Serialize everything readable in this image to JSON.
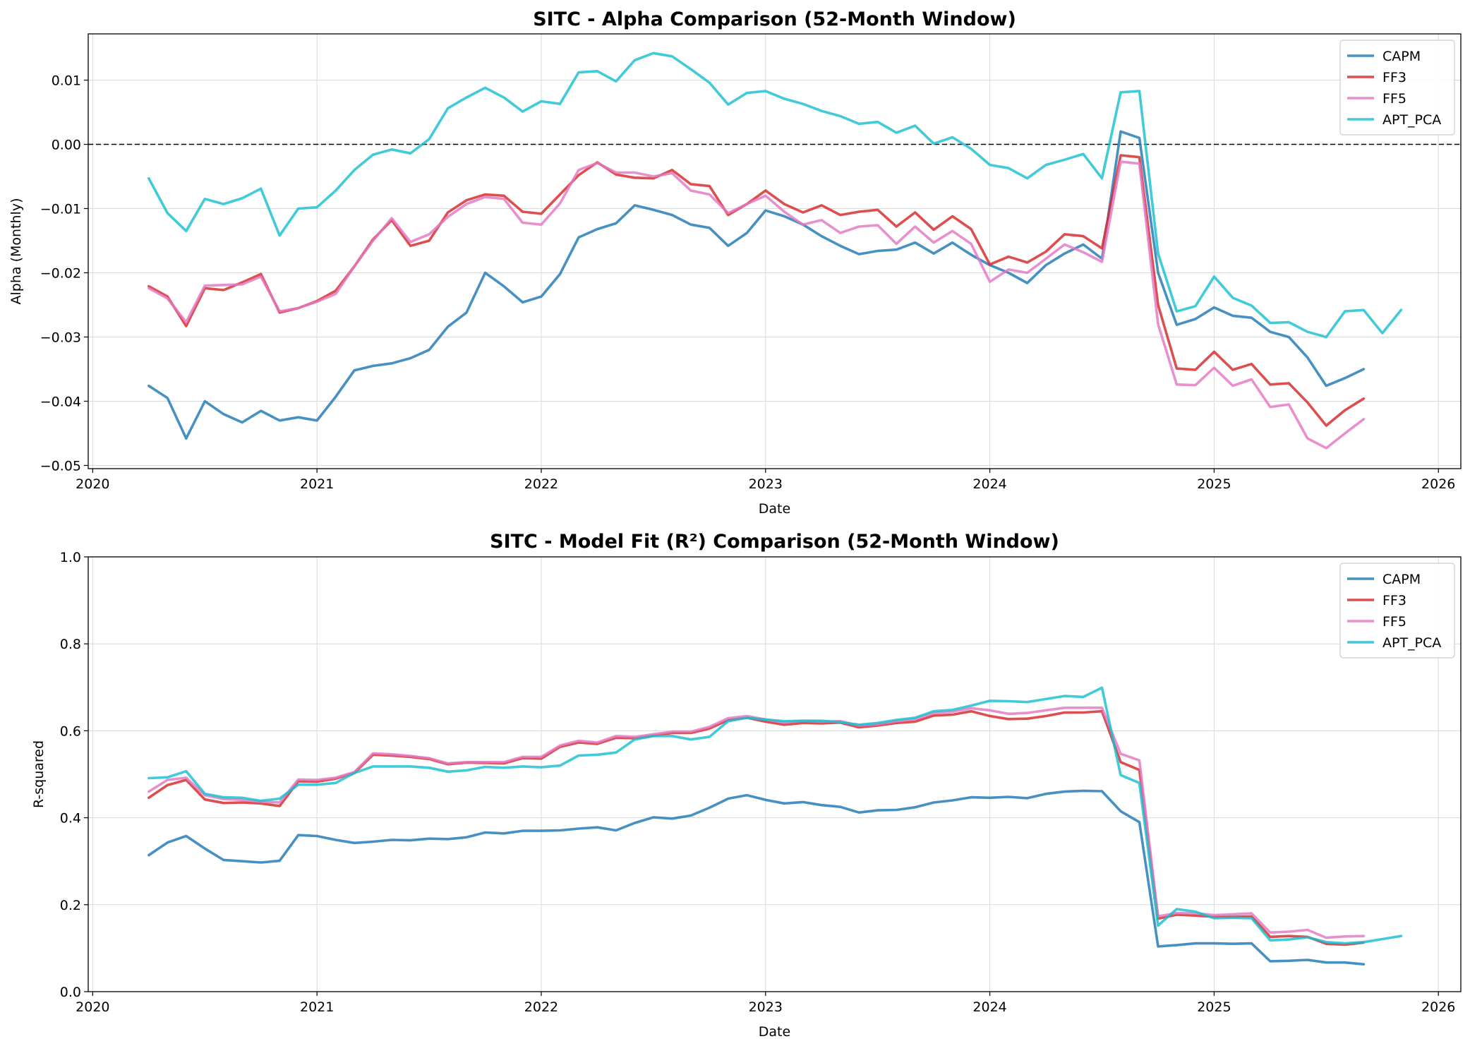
{
  "chart_data": [
    {
      "type": "line",
      "title": "SITC - Alpha Comparison (52-Month Window)",
      "xlabel": "Date",
      "ylabel": "Alpha (Monthly)",
      "xlim": [
        2019.98,
        2026.1
      ],
      "ylim": [
        -0.0505,
        0.0172
      ],
      "xticks": [
        "2020",
        "2021",
        "2022",
        "2023",
        "2024",
        "2025",
        "2026"
      ],
      "yticks": [
        "−0.05",
        "−0.04",
        "−0.03",
        "−0.02",
        "−0.01",
        "0.00",
        "0.01"
      ],
      "grid": true,
      "legend": "top-right",
      "reference_line": {
        "y": 0.0,
        "style": "dashed",
        "color": "#000000"
      },
      "series": [
        {
          "name": "CAPM",
          "color": "#1f77b4",
          "start": "2020-04",
          "values": [
            -0.0376,
            -0.0395,
            -0.0458,
            -0.04,
            -0.042,
            -0.0433,
            -0.0415,
            -0.043,
            -0.0425,
            -0.043,
            -0.0393,
            -0.0352,
            -0.0345,
            -0.0341,
            -0.0333,
            -0.032,
            -0.0284,
            -0.0262,
            -0.02,
            -0.0221,
            -0.0246,
            -0.0237,
            -0.0202,
            -0.0145,
            -0.0132,
            -0.0123,
            -0.0095,
            -0.0102,
            -0.011,
            -0.0125,
            -0.013,
            -0.0158,
            -0.0138,
            -0.0103,
            -0.0112,
            -0.0125,
            -0.0143,
            -0.0158,
            -0.0171,
            -0.0166,
            -0.0164,
            -0.0153,
            -0.017,
            -0.0153,
            -0.0172,
            -0.0188,
            -0.02,
            -0.0216,
            -0.0188,
            -0.017,
            -0.0156,
            -0.0178,
            0.002,
            0.001,
            -0.02,
            -0.0281,
            -0.0272,
            -0.0254,
            -0.0267,
            -0.027,
            -0.0292,
            -0.03,
            -0.0332,
            -0.0376,
            -0.0364,
            -0.035
          ]
        },
        {
          "name": "FF3",
          "color": "#d62728",
          "start": "2020-04",
          "values": [
            -0.0221,
            -0.0237,
            -0.0283,
            -0.0224,
            -0.0227,
            -0.0215,
            -0.0202,
            -0.0262,
            -0.0255,
            -0.0244,
            -0.0228,
            -0.019,
            -0.0148,
            -0.0118,
            -0.0158,
            -0.015,
            -0.0106,
            -0.0087,
            -0.0078,
            -0.008,
            -0.0105,
            -0.0108,
            -0.0078,
            -0.0048,
            -0.0028,
            -0.0047,
            -0.0052,
            -0.0053,
            -0.004,
            -0.0062,
            -0.0065,
            -0.011,
            -0.0093,
            -0.0072,
            -0.0093,
            -0.0106,
            -0.0095,
            -0.011,
            -0.0105,
            -0.0102,
            -0.0128,
            -0.0106,
            -0.0133,
            -0.0112,
            -0.0132,
            -0.0187,
            -0.0175,
            -0.0184,
            -0.0167,
            -0.014,
            -0.0143,
            -0.0162,
            -0.0017,
            -0.002,
            -0.025,
            -0.0349,
            -0.0351,
            -0.0323,
            -0.0351,
            -0.0342,
            -0.0374,
            -0.0372,
            -0.0402,
            -0.0438,
            -0.0414,
            -0.0396
          ]
        },
        {
          "name": "FF5",
          "color": "#e377c2",
          "start": "2020-04",
          "values": [
            -0.0224,
            -0.024,
            -0.0277,
            -0.022,
            -0.0219,
            -0.0218,
            -0.0206,
            -0.026,
            -0.0255,
            -0.0245,
            -0.0233,
            -0.019,
            -0.015,
            -0.0115,
            -0.0152,
            -0.014,
            -0.0113,
            -0.0093,
            -0.0082,
            -0.0085,
            -0.0122,
            -0.0125,
            -0.0092,
            -0.004,
            -0.0029,
            -0.0044,
            -0.0044,
            -0.005,
            -0.0045,
            -0.0072,
            -0.0078,
            -0.0107,
            -0.0093,
            -0.008,
            -0.0105,
            -0.0125,
            -0.0118,
            -0.0138,
            -0.0128,
            -0.0126,
            -0.0155,
            -0.0128,
            -0.0153,
            -0.0135,
            -0.0155,
            -0.0214,
            -0.0195,
            -0.02,
            -0.0178,
            -0.0156,
            -0.0168,
            -0.0183,
            -0.0027,
            -0.003,
            -0.028,
            -0.0374,
            -0.0375,
            -0.0348,
            -0.0376,
            -0.0366,
            -0.0409,
            -0.0405,
            -0.0458,
            -0.0473,
            -0.045,
            -0.0428
          ]
        },
        {
          "name": "APT_PCA",
          "color": "#17becf",
          "start": "2020-04",
          "values": [
            -0.0053,
            -0.0107,
            -0.0135,
            -0.0085,
            -0.0093,
            -0.0084,
            -0.0069,
            -0.0142,
            -0.01,
            -0.0098,
            -0.0072,
            -0.004,
            -0.0016,
            -0.0008,
            -0.0014,
            0.0008,
            0.0056,
            0.0073,
            0.0088,
            0.0073,
            0.0051,
            0.0067,
            0.0063,
            0.0112,
            0.0114,
            0.0098,
            0.0131,
            0.0142,
            0.0137,
            0.0117,
            0.0096,
            0.0062,
            0.008,
            0.0083,
            0.0071,
            0.0063,
            0.0052,
            0.0044,
            0.0032,
            0.0035,
            0.0018,
            0.0029,
            0.0001,
            0.0011,
            -0.0007,
            -0.0032,
            -0.0037,
            -0.0053,
            -0.0032,
            -0.0024,
            -0.0015,
            -0.0053,
            0.0081,
            0.0083,
            -0.017,
            -0.026,
            -0.0252,
            -0.0206,
            -0.0239,
            -0.0251,
            -0.0278,
            -0.0277,
            -0.0292,
            -0.03,
            -0.026,
            -0.0258,
            -0.0294,
            -0.0258
          ]
        }
      ]
    },
    {
      "type": "line",
      "title": "SITC - Model Fit (R²) Comparison (52-Month Window)",
      "xlabel": "Date",
      "ylabel": "R-squared",
      "xlim": [
        2019.98,
        2026.1
      ],
      "ylim": [
        0.0,
        1.0
      ],
      "xticks": [
        "2020",
        "2021",
        "2022",
        "2023",
        "2024",
        "2025",
        "2026"
      ],
      "yticks": [
        "0.0",
        "0.2",
        "0.4",
        "0.6",
        "0.8",
        "1.0"
      ],
      "grid": true,
      "legend": "top-right",
      "series": [
        {
          "name": "CAPM",
          "color": "#1f77b4",
          "start": "2020-04",
          "values": [
            0.314,
            0.343,
            0.358,
            0.329,
            0.303,
            0.3,
            0.297,
            0.301,
            0.36,
            0.358,
            0.349,
            0.342,
            0.345,
            0.349,
            0.348,
            0.352,
            0.351,
            0.355,
            0.366,
            0.364,
            0.37,
            0.37,
            0.371,
            0.375,
            0.378,
            0.371,
            0.388,
            0.401,
            0.398,
            0.405,
            0.423,
            0.444,
            0.452,
            0.441,
            0.433,
            0.436,
            0.429,
            0.425,
            0.412,
            0.417,
            0.418,
            0.424,
            0.435,
            0.44,
            0.447,
            0.446,
            0.448,
            0.445,
            0.455,
            0.46,
            0.462,
            0.461,
            0.415,
            0.39,
            0.104,
            0.107,
            0.111,
            0.111,
            0.11,
            0.111,
            0.07,
            0.071,
            0.073,
            0.067,
            0.067,
            0.063
          ]
        },
        {
          "name": "FF3",
          "color": "#d62728",
          "start": "2020-04",
          "values": [
            0.446,
            0.475,
            0.487,
            0.442,
            0.434,
            0.435,
            0.433,
            0.427,
            0.484,
            0.483,
            0.49,
            0.503,
            0.545,
            0.543,
            0.54,
            0.535,
            0.523,
            0.527,
            0.526,
            0.525,
            0.537,
            0.536,
            0.563,
            0.573,
            0.57,
            0.584,
            0.583,
            0.589,
            0.595,
            0.595,
            0.605,
            0.625,
            0.63,
            0.621,
            0.614,
            0.618,
            0.617,
            0.619,
            0.608,
            0.612,
            0.618,
            0.621,
            0.635,
            0.637,
            0.645,
            0.634,
            0.627,
            0.628,
            0.634,
            0.642,
            0.642,
            0.645,
            0.528,
            0.51,
            0.168,
            0.177,
            0.175,
            0.172,
            0.172,
            0.173,
            0.126,
            0.128,
            0.126,
            0.11,
            0.108,
            0.113
          ]
        },
        {
          "name": "FF5",
          "color": "#e377c2",
          "start": "2020-04",
          "values": [
            0.46,
            0.487,
            0.492,
            0.452,
            0.443,
            0.441,
            0.437,
            0.435,
            0.488,
            0.487,
            0.492,
            0.505,
            0.548,
            0.546,
            0.542,
            0.537,
            0.525,
            0.528,
            0.528,
            0.528,
            0.54,
            0.54,
            0.566,
            0.577,
            0.573,
            0.588,
            0.586,
            0.592,
            0.598,
            0.598,
            0.609,
            0.629,
            0.634,
            0.626,
            0.619,
            0.623,
            0.621,
            0.622,
            0.612,
            0.615,
            0.622,
            0.627,
            0.641,
            0.644,
            0.652,
            0.647,
            0.639,
            0.641,
            0.647,
            0.653,
            0.653,
            0.653,
            0.547,
            0.532,
            0.173,
            0.181,
            0.18,
            0.176,
            0.178,
            0.18,
            0.136,
            0.138,
            0.142,
            0.124,
            0.127,
            0.128
          ]
        },
        {
          "name": "APT_PCA",
          "color": "#17becf",
          "start": "2020-04",
          "values": [
            0.491,
            0.493,
            0.507,
            0.455,
            0.447,
            0.446,
            0.439,
            0.444,
            0.476,
            0.476,
            0.48,
            0.503,
            0.518,
            0.518,
            0.518,
            0.515,
            0.506,
            0.509,
            0.517,
            0.515,
            0.518,
            0.516,
            0.52,
            0.543,
            0.545,
            0.55,
            0.58,
            0.588,
            0.588,
            0.58,
            0.586,
            0.622,
            0.63,
            0.626,
            0.622,
            0.623,
            0.623,
            0.62,
            0.614,
            0.618,
            0.625,
            0.63,
            0.645,
            0.648,
            0.658,
            0.669,
            0.668,
            0.666,
            0.673,
            0.68,
            0.678,
            0.699,
            0.498,
            0.48,
            0.152,
            0.19,
            0.184,
            0.169,
            0.17,
            0.169,
            0.118,
            0.12,
            0.125,
            0.114,
            0.111,
            0.114,
            0.121,
            0.128
          ]
        }
      ]
    }
  ]
}
